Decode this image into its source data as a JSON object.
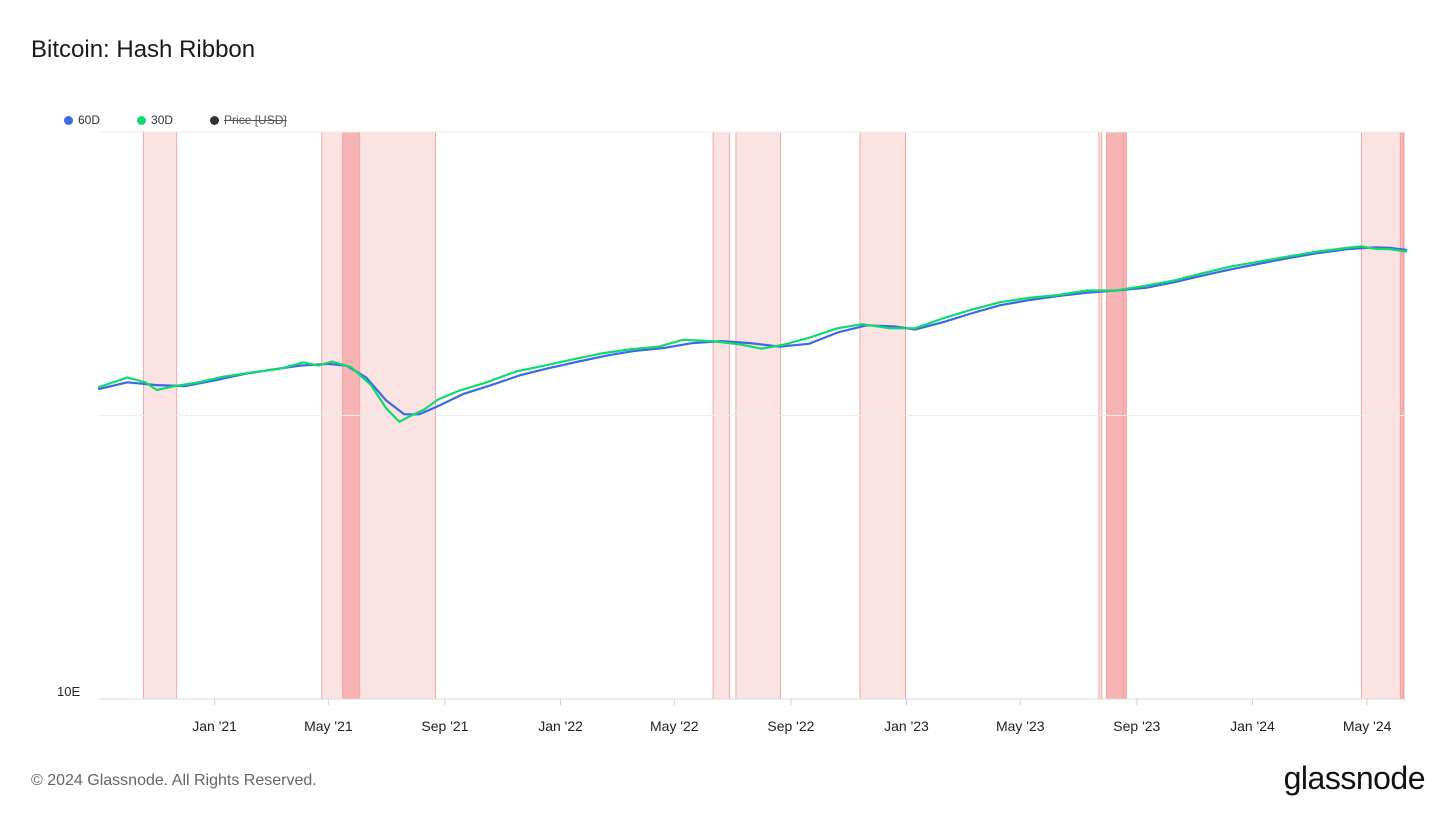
{
  "title": "Bitcoin: Hash Ribbon",
  "legend": [
    {
      "label": "60D",
      "color": "#3c6ae6",
      "active": true
    },
    {
      "label": "30D",
      "color": "#12d96f",
      "active": true
    },
    {
      "label": "Price [USD]",
      "color": "#333333",
      "active": false
    }
  ],
  "footer": "© 2024 Glassnode. All Rights Reserved.",
  "logo": "glassnode",
  "chart_data": {
    "type": "line",
    "title": "Bitcoin: Hash Ribbon",
    "y_scale": "log",
    "y_tick_labels": [
      "10E"
    ],
    "x_tick_labels": [
      "Jan '21",
      "May '21",
      "Sep '21",
      "Jan '22",
      "May '22",
      "Sep '22",
      "Jan '23",
      "May '23",
      "Sep '23",
      "Jan '24",
      "May '24"
    ],
    "x_range": [
      "2020-09-01",
      "2024-06-11"
    ],
    "y_range": [
      10,
      1000
    ],
    "grid": true,
    "colors": {
      "capitulation_band": "#fbe3e3",
      "capitulation_edge": "#f2a6a6",
      "deep_band": "#f7b4b4"
    },
    "capitulation_periods": [
      {
        "start": "2020-10-18",
        "end": "2020-11-22",
        "deep": false
      },
      {
        "start": "2021-04-24",
        "end": "2021-08-22",
        "deep": false
      },
      {
        "start": "2021-05-16",
        "end": "2021-06-03",
        "deep": true
      },
      {
        "start": "2022-06-11",
        "end": "2022-06-28",
        "deep": false
      },
      {
        "start": "2022-07-05",
        "end": "2022-08-21",
        "deep": false
      },
      {
        "start": "2022-11-13",
        "end": "2022-12-31",
        "deep": false
      },
      {
        "start": "2023-07-23",
        "end": "2023-07-26",
        "deep": false
      },
      {
        "start": "2023-07-31",
        "end": "2023-08-17",
        "deep": true
      },
      {
        "start": "2023-08-18",
        "end": "2023-08-21",
        "deep": true
      },
      {
        "start": "2024-04-25",
        "end": "2024-06-09",
        "deep": false
      },
      {
        "start": "2024-06-05",
        "end": "2024-06-08",
        "deep": true
      }
    ],
    "series": [
      {
        "name": "60D",
        "color": "#3c6ae6",
        "points": [
          [
            "2020-09-01",
            124
          ],
          [
            "2020-10-01",
            131
          ],
          [
            "2020-11-01",
            128
          ],
          [
            "2020-12-01",
            127
          ],
          [
            "2021-01-01",
            133
          ],
          [
            "2021-02-01",
            140
          ],
          [
            "2021-03-01",
            145
          ],
          [
            "2021-04-01",
            150
          ],
          [
            "2021-05-01",
            152
          ],
          [
            "2021-05-20",
            150
          ],
          [
            "2021-06-10",
            136
          ],
          [
            "2021-07-01",
            113
          ],
          [
            "2021-07-20",
            101
          ],
          [
            "2021-08-05",
            101
          ],
          [
            "2021-08-25",
            108
          ],
          [
            "2021-09-20",
            119
          ],
          [
            "2021-10-20",
            128
          ],
          [
            "2021-11-20",
            139
          ],
          [
            "2021-12-20",
            147
          ],
          [
            "2022-01-20",
            155
          ],
          [
            "2022-02-20",
            163
          ],
          [
            "2022-03-20",
            169
          ],
          [
            "2022-04-20",
            173
          ],
          [
            "2022-05-20",
            180
          ],
          [
            "2022-06-20",
            183
          ],
          [
            "2022-07-20",
            180
          ],
          [
            "2022-08-20",
            175
          ],
          [
            "2022-09-20",
            179
          ],
          [
            "2022-10-20",
            196
          ],
          [
            "2022-11-20",
            208
          ],
          [
            "2022-12-20",
            206
          ],
          [
            "2023-01-10",
            201
          ],
          [
            "2023-02-10",
            214
          ],
          [
            "2023-03-10",
            229
          ],
          [
            "2023-04-10",
            245
          ],
          [
            "2023-05-10",
            255
          ],
          [
            "2023-06-10",
            264
          ],
          [
            "2023-07-10",
            271
          ],
          [
            "2023-08-10",
            276
          ],
          [
            "2023-09-10",
            282
          ],
          [
            "2023-10-10",
            295
          ],
          [
            "2023-11-10",
            312
          ],
          [
            "2023-12-10",
            328
          ],
          [
            "2024-01-10",
            344
          ],
          [
            "2024-02-10",
            360
          ],
          [
            "2024-03-10",
            374
          ],
          [
            "2024-04-10",
            386
          ],
          [
            "2024-05-10",
            392
          ],
          [
            "2024-05-25",
            390
          ],
          [
            "2024-06-11",
            384
          ]
        ]
      },
      {
        "name": "30D",
        "color": "#12d96f",
        "points": [
          [
            "2020-09-01",
            126
          ],
          [
            "2020-10-01",
            136
          ],
          [
            "2020-10-20",
            131
          ],
          [
            "2020-11-01",
            123
          ],
          [
            "2020-11-20",
            127
          ],
          [
            "2020-12-15",
            131
          ],
          [
            "2021-01-10",
            137
          ],
          [
            "2021-02-10",
            142
          ],
          [
            "2021-03-10",
            146
          ],
          [
            "2021-04-05",
            154
          ],
          [
            "2021-04-20",
            150
          ],
          [
            "2021-05-05",
            155
          ],
          [
            "2021-05-25",
            148
          ],
          [
            "2021-06-15",
            128
          ],
          [
            "2021-07-01",
            106
          ],
          [
            "2021-07-15",
            95
          ],
          [
            "2021-07-25",
            99
          ],
          [
            "2021-08-10",
            105
          ],
          [
            "2021-08-25",
            114
          ],
          [
            "2021-09-15",
            122
          ],
          [
            "2021-10-15",
            131
          ],
          [
            "2021-11-15",
            143
          ],
          [
            "2021-12-15",
            150
          ],
          [
            "2022-01-15",
            158
          ],
          [
            "2022-02-15",
            166
          ],
          [
            "2022-03-15",
            171
          ],
          [
            "2022-04-15",
            175
          ],
          [
            "2022-05-10",
            185
          ],
          [
            "2022-06-10",
            183
          ],
          [
            "2022-07-10",
            178
          ],
          [
            "2022-08-01",
            172
          ],
          [
            "2022-08-25",
            178
          ],
          [
            "2022-09-20",
            188
          ],
          [
            "2022-10-20",
            203
          ],
          [
            "2022-11-15",
            210
          ],
          [
            "2022-12-15",
            203
          ],
          [
            "2023-01-10",
            203
          ],
          [
            "2023-02-10",
            221
          ],
          [
            "2023-03-10",
            236
          ],
          [
            "2023-04-10",
            251
          ],
          [
            "2023-05-10",
            260
          ],
          [
            "2023-06-10",
            266
          ],
          [
            "2023-07-10",
            276
          ],
          [
            "2023-08-10",
            276
          ],
          [
            "2023-09-10",
            287
          ],
          [
            "2023-10-10",
            299
          ],
          [
            "2023-11-10",
            318
          ],
          [
            "2023-12-10",
            336
          ],
          [
            "2024-01-10",
            350
          ],
          [
            "2024-02-10",
            365
          ],
          [
            "2024-03-10",
            379
          ],
          [
            "2024-04-10",
            390
          ],
          [
            "2024-04-25",
            395
          ],
          [
            "2024-05-10",
            387
          ],
          [
            "2024-05-25",
            386
          ],
          [
            "2024-06-11",
            379
          ]
        ]
      }
    ]
  }
}
